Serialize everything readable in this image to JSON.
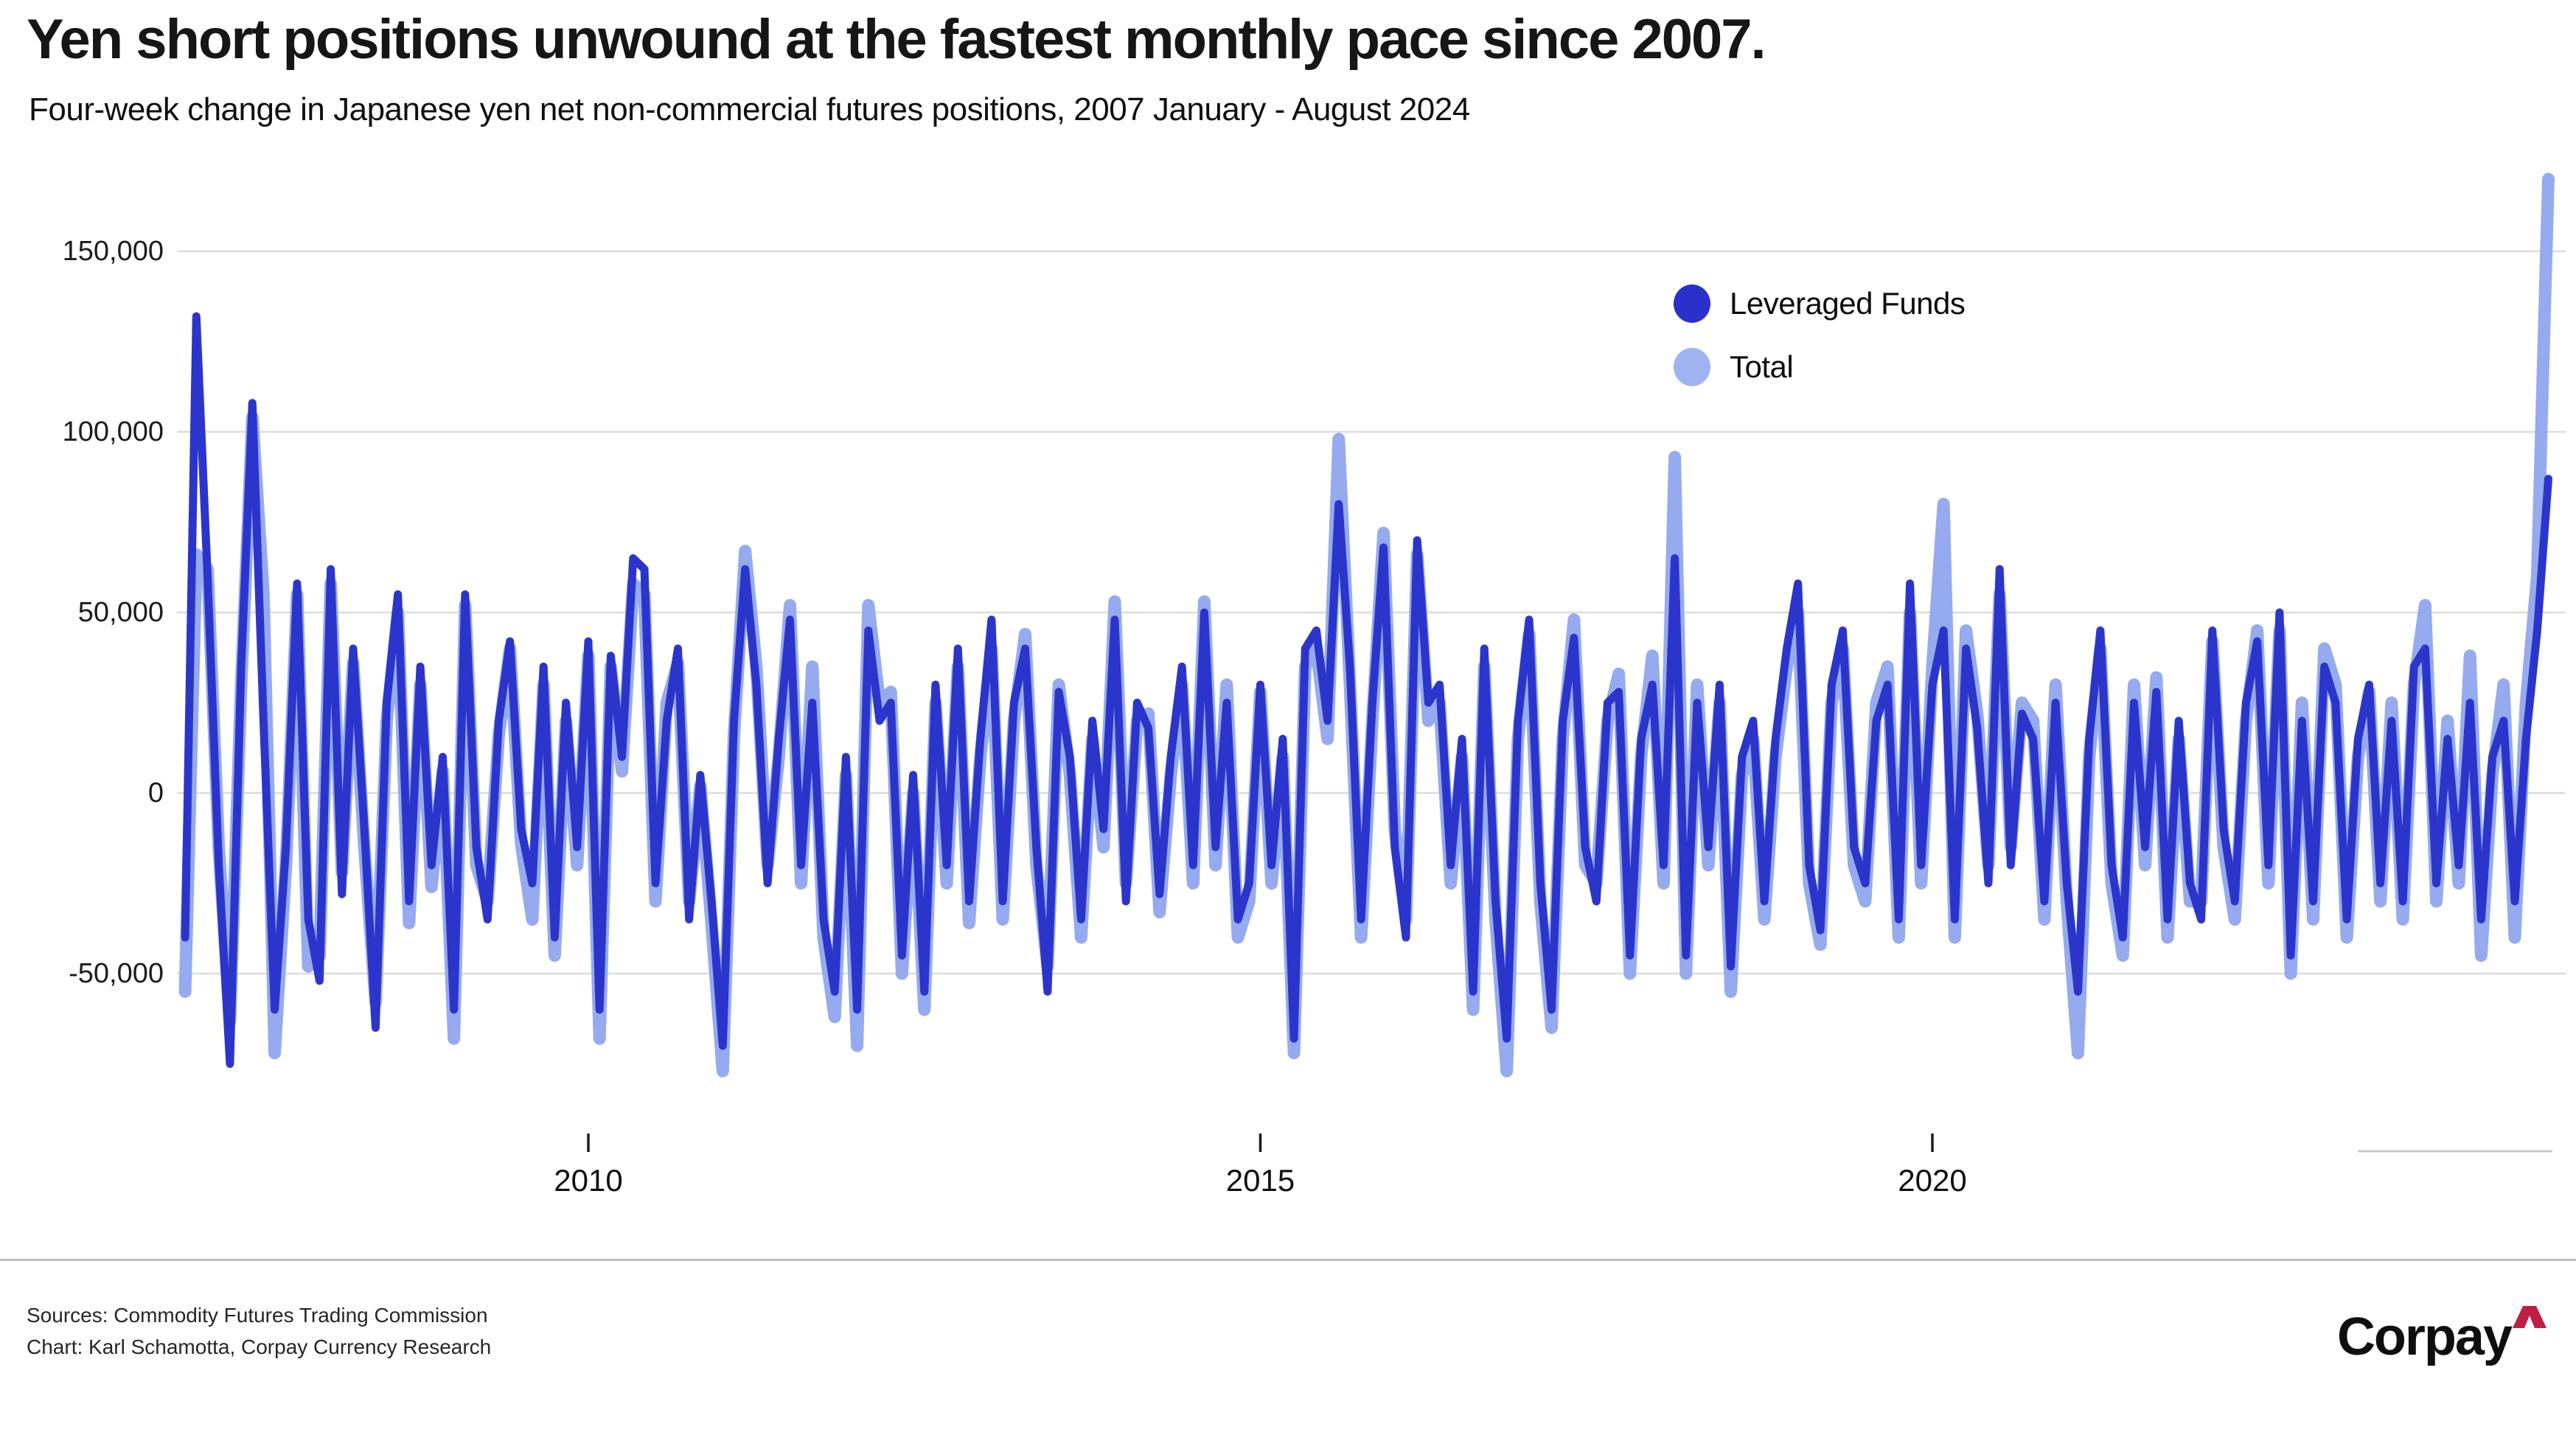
{
  "title": "Yen short positions unwound at the fastest monthly pace since 2007.",
  "subtitle": "Four-week change in Japanese yen net non-commercial futures positions, 2007 January - August 2024",
  "legend": {
    "items": [
      {
        "label": "Leveraged Funds",
        "color": "#2A30C9"
      },
      {
        "label": "Total",
        "color": "#A0B3F1"
      }
    ]
  },
  "footer": {
    "sources_line": "Sources: Commodity Futures Trading Commission",
    "credit_line": "Chart: Karl Schamotta, Corpay Currency Research",
    "brand": "Corpay",
    "brand_caret_color": "#C01F45"
  },
  "chart_data": {
    "type": "line",
    "title": "Yen short positions unwound at the fastest monthly pace since 2007.",
    "subtitle": "Four-week change in Japanese yen net non-commercial futures positions, 2007 January - August 2024",
    "xlabel": "",
    "ylabel": "",
    "x_start_year": 2007,
    "x_step_months": 1,
    "x_end_label": "August 2024",
    "xlim": [
      2006.95,
      2024.72
    ],
    "ylim": [
      -85000,
      175000
    ],
    "grid": "horizontal-only",
    "grid_color": "#dcdcdc",
    "legend_position": "inside-top-right",
    "x_ticks": [
      2010,
      2015,
      2020
    ],
    "x_tick_labels": [
      "2010",
      "2015",
      "2020"
    ],
    "y_ticks": [
      150000,
      100000,
      50000,
      0,
      -50000
    ],
    "y_tick_labels": [
      "150,000",
      "100,000",
      "50,000",
      "0",
      "-50,000"
    ],
    "series": [
      {
        "name": "Total",
        "color": "#96AAEF",
        "stroke_width": 17,
        "values": [
          -55000,
          66000,
          62000,
          -15000,
          -63000,
          30000,
          104000,
          55000,
          -72000,
          -20000,
          55000,
          -48000,
          -45000,
          58000,
          -22000,
          36000,
          -15000,
          -58000,
          20000,
          50000,
          -36000,
          30000,
          -26000,
          6000,
          -68000,
          52000,
          -20000,
          -30000,
          16000,
          40000,
          -14000,
          -35000,
          30000,
          -45000,
          20000,
          -20000,
          38000,
          -68000,
          35000,
          6000,
          58000,
          55000,
          -30000,
          25000,
          36000,
          -30000,
          2000,
          -36000,
          -77000,
          16000,
          67000,
          35000,
          -20000,
          10000,
          52000,
          -25000,
          35000,
          -40000,
          -62000,
          5000,
          -70000,
          52000,
          25000,
          28000,
          -50000,
          0,
          -60000,
          25000,
          -25000,
          35000,
          -36000,
          10000,
          40000,
          -35000,
          20000,
          44000,
          -20000,
          -48000,
          30000,
          5000,
          -40000,
          15000,
          -15000,
          53000,
          -25000,
          20000,
          22000,
          -33000,
          5000,
          30000,
          -25000,
          53000,
          -20000,
          30000,
          -40000,
          -30000,
          28000,
          -25000,
          10000,
          -72000,
          35000,
          40000,
          15000,
          98000,
          30000,
          -40000,
          20000,
          72000,
          -10000,
          -35000,
          66000,
          20000,
          25000,
          -25000,
          10000,
          -60000,
          35000,
          -35000,
          -77000,
          15000,
          44000,
          -30000,
          -65000,
          15000,
          48000,
          -20000,
          -25000,
          20000,
          33000,
          -50000,
          10000,
          38000,
          -25000,
          93000,
          -50000,
          30000,
          -20000,
          25000,
          -55000,
          5000,
          15000,
          -35000,
          10000,
          35000,
          50000,
          -25000,
          -42000,
          25000,
          40000,
          -20000,
          -30000,
          25000,
          35000,
          -40000,
          50000,
          -25000,
          35000,
          80000,
          -40000,
          45000,
          22000,
          -20000,
          55000,
          -15000,
          25000,
          20000,
          -35000,
          30000,
          -30000,
          -72000,
          10000,
          40000,
          -25000,
          -45000,
          30000,
          -20000,
          32000,
          -40000,
          15000,
          -30000,
          -30000,
          42000,
          -15000,
          -35000,
          20000,
          45000,
          -25000,
          45000,
          -50000,
          25000,
          -35000,
          40000,
          30000,
          -40000,
          10000,
          28000,
          -30000,
          25000,
          -35000,
          30000,
          52000,
          -30000,
          20000,
          -25000,
          38000,
          -45000,
          5000,
          30000,
          -40000,
          25000,
          60000,
          170000
        ]
      },
      {
        "name": "Leveraged Funds",
        "color": "#2C35CB",
        "stroke_width": 11,
        "values": [
          -40000,
          132000,
          60000,
          -20000,
          -75000,
          35000,
          108000,
          20000,
          -60000,
          -15000,
          58000,
          -35000,
          -52000,
          62000,
          -28000,
          40000,
          -10000,
          -65000,
          25000,
          55000,
          -30000,
          35000,
          -20000,
          10000,
          -60000,
          55000,
          -15000,
          -35000,
          20000,
          42000,
          -10000,
          -25000,
          35000,
          -40000,
          25000,
          -15000,
          42000,
          -60000,
          38000,
          10000,
          65000,
          62000,
          -25000,
          20000,
          40000,
          -35000,
          5000,
          -30000,
          -70000,
          20000,
          62000,
          30000,
          -25000,
          15000,
          48000,
          -20000,
          25000,
          -35000,
          -55000,
          10000,
          -60000,
          45000,
          20000,
          25000,
          -45000,
          5000,
          -55000,
          30000,
          -20000,
          40000,
          -30000,
          15000,
          48000,
          -30000,
          25000,
          40000,
          -15000,
          -55000,
          28000,
          10000,
          -35000,
          20000,
          -10000,
          48000,
          -30000,
          25000,
          18000,
          -28000,
          10000,
          35000,
          -20000,
          50000,
          -15000,
          25000,
          -35000,
          -25000,
          30000,
          -20000,
          15000,
          -68000,
          40000,
          45000,
          20000,
          80000,
          35000,
          -35000,
          25000,
          68000,
          -15000,
          -40000,
          70000,
          25000,
          30000,
          -20000,
          15000,
          -55000,
          40000,
          -30000,
          -68000,
          20000,
          48000,
          -25000,
          -60000,
          20000,
          43000,
          -15000,
          -30000,
          25000,
          28000,
          -45000,
          15000,
          30000,
          -20000,
          65000,
          -45000,
          25000,
          -15000,
          30000,
          -48000,
          10000,
          20000,
          -30000,
          15000,
          40000,
          58000,
          -20000,
          -38000,
          30000,
          45000,
          -15000,
          -25000,
          20000,
          30000,
          -35000,
          58000,
          -20000,
          30000,
          45000,
          -35000,
          40000,
          18000,
          -25000,
          62000,
          -20000,
          22000,
          15000,
          -30000,
          25000,
          -25000,
          -55000,
          15000,
          45000,
          -20000,
          -40000,
          25000,
          -15000,
          28000,
          -35000,
          20000,
          -25000,
          -35000,
          45000,
          -10000,
          -30000,
          25000,
          42000,
          -20000,
          50000,
          -45000,
          20000,
          -30000,
          35000,
          25000,
          -35000,
          15000,
          30000,
          -25000,
          20000,
          -30000,
          35000,
          40000,
          -25000,
          15000,
          -20000,
          25000,
          -35000,
          10000,
          20000,
          -30000,
          15000,
          45000,
          87000
        ]
      }
    ]
  }
}
